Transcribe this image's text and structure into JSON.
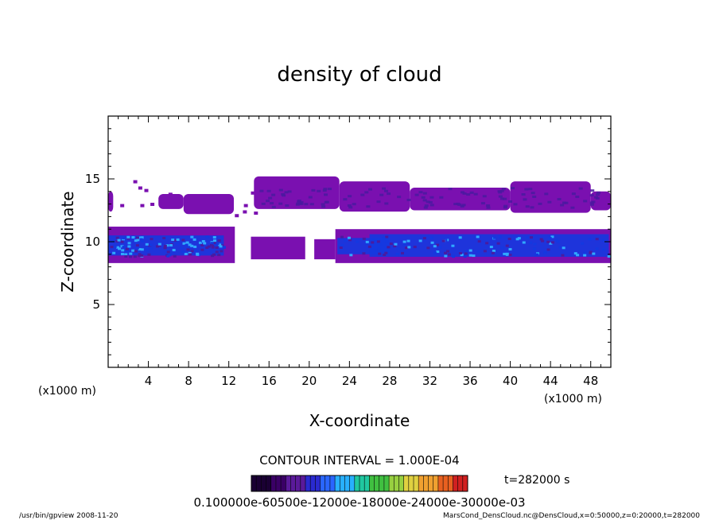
{
  "chart_data": {
    "type": "heatmap",
    "title": "density of cloud",
    "xlabel": "X-coordinate",
    "ylabel": "Z-coordinate",
    "x_unit_left": "(x1000 m)",
    "x_unit_right": "(x1000 m)",
    "xlim": [
      0,
      50
    ],
    "ylim": [
      0,
      20
    ],
    "x_ticks": [
      4,
      8,
      12,
      16,
      20,
      24,
      28,
      32,
      36,
      40,
      44,
      48
    ],
    "y_ticks": [
      5,
      10,
      15
    ],
    "grid": false,
    "contour_interval_text": "CONTOUR INTERVAL = 1.000E-04",
    "colorbar_labels_text": "0.100000e-60500e-12000e-18000e-24000e-30000e-03",
    "colorbar_colors": [
      "#1a0033",
      "#3a0066",
      "#5a1a9a",
      "#2a2ad0",
      "#2a66ff",
      "#28b0ff",
      "#20c8a0",
      "#40c040",
      "#98d040",
      "#e0d040",
      "#f0a030",
      "#e86020",
      "#d02020",
      "#ffffff"
    ],
    "time_label": "t=282000 s",
    "layers": [
      {
        "name": "upper layer",
        "z_range": [
          12.5,
          15.2
        ],
        "x_range": [
          0,
          50
        ]
      },
      {
        "name": "lower layer",
        "z_range": [
          8.3,
          11.2
        ],
        "x_range": [
          0,
          50
        ]
      }
    ]
  },
  "footer": {
    "left": "/usr/bin/gpview  2008-11-20",
    "right": "MarsCond_DensCloud.nc@DensCloud,x=0:50000,z=0:20000,t=282000"
  },
  "colors": {
    "background": "#ffffff",
    "cloud_dim": "#7a10b0",
    "cloud_mid": "#4a1aa0",
    "cloud_strong": "#1438e0",
    "cloud_peak": "#30a8ff"
  }
}
